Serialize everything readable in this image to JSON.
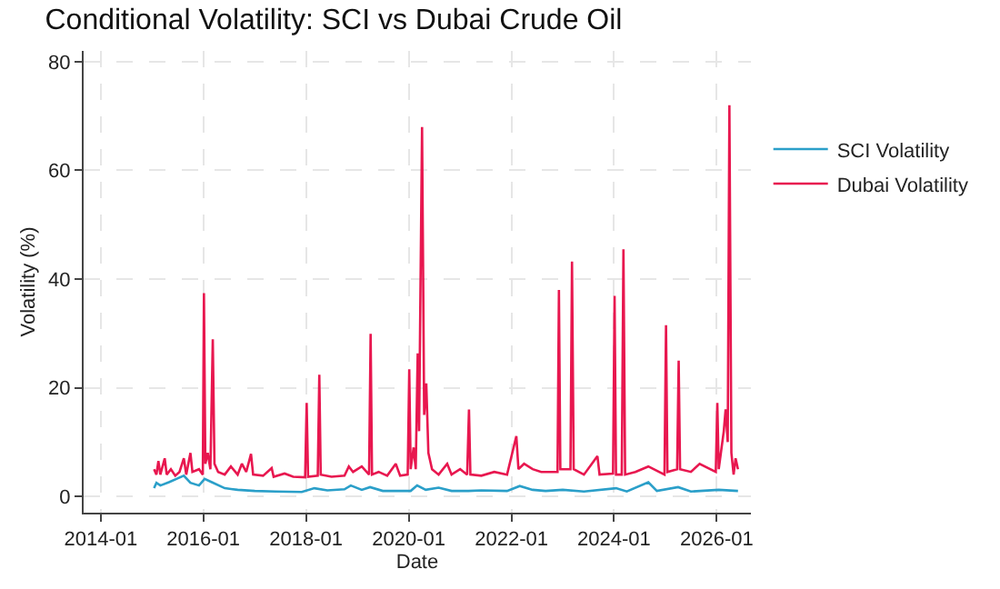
{
  "chart_data": {
    "type": "line",
    "title": "Conditional Volatility: SCI vs Dubai Crude Oil",
    "xlabel": "Date",
    "ylabel": "Volatility (%)",
    "xlim": [
      "2013-09",
      "2026-09"
    ],
    "xticks": [
      "2014-01",
      "2016-01",
      "2018-01",
      "2020-01",
      "2022-01",
      "2024-01",
      "2026-01"
    ],
    "ylim": [
      -3,
      82
    ],
    "yticks": [
      0,
      20,
      40,
      60,
      80
    ],
    "grid": true,
    "legend": "right",
    "marker": "none",
    "line_style": "solid",
    "series": [
      {
        "name": "SCI Volatility",
        "color": "#2a9fc9",
        "x": [
          "2015-01-15",
          "2015-02-01",
          "2015-03-01",
          "2015-05-01",
          "2015-07-01",
          "2015-08-15",
          "2015-10-01",
          "2015-12-01",
          "2016-01-10",
          "2016-03-01",
          "2016-06-01",
          "2016-09-01",
          "2017-01-01",
          "2017-06-01",
          "2017-12-01",
          "2018-03-01",
          "2018-06-01",
          "2018-10-01",
          "2018-11-15",
          "2019-02-01",
          "2019-04-01",
          "2019-07-01",
          "2020-01-15",
          "2020-03-01",
          "2020-05-01",
          "2020-08-01",
          "2020-11-01",
          "2021-03-01",
          "2021-06-01",
          "2021-12-01",
          "2022-03-01",
          "2022-06-01",
          "2022-09-01",
          "2023-01-01",
          "2023-06-01",
          "2024-01-15",
          "2024-04-01",
          "2024-09-01",
          "2024-11-01",
          "2025-04-01",
          "2025-07-01",
          "2026-01-15",
          "2026-06-01"
        ],
        "values": [
          1.5,
          2.5,
          2.0,
          2.6,
          3.3,
          3.8,
          2.5,
          2.0,
          3.2,
          2.6,
          1.5,
          1.2,
          1.0,
          0.9,
          0.8,
          1.5,
          1.1,
          1.3,
          2.0,
          1.2,
          1.7,
          1.0,
          1.0,
          2.0,
          1.2,
          1.6,
          1.0,
          1.0,
          1.1,
          1.0,
          1.9,
          1.2,
          1.0,
          1.2,
          0.9,
          1.5,
          0.9,
          2.6,
          1.0,
          1.7,
          0.9,
          1.2,
          1.0
        ]
      },
      {
        "name": "Dubai Volatility",
        "color": "#e8174f",
        "x": [
          "2015-01-15",
          "2015-02-01",
          "2015-02-15",
          "2015-03-01",
          "2015-04-01",
          "2015-04-15",
          "2015-05-15",
          "2015-06-15",
          "2015-07-15",
          "2015-08-15",
          "2015-09-01",
          "2015-10-01",
          "2015-10-15",
          "2015-12-01",
          "2015-12-28",
          "2016-01-05",
          "2016-01-15",
          "2016-02-01",
          "2016-02-20",
          "2016-03-08",
          "2016-03-20",
          "2016-04-15",
          "2016-06-01",
          "2016-07-15",
          "2016-09-01",
          "2016-10-01",
          "2016-11-01",
          "2016-12-05",
          "2016-12-20",
          "2017-03-01",
          "2017-05-01",
          "2017-05-15",
          "2017-08-01",
          "2017-10-01",
          "2017-12-25",
          "2018-01-05",
          "2018-01-15",
          "2018-03-25",
          "2018-04-05",
          "2018-04-15",
          "2018-07-01",
          "2018-10-01",
          "2018-11-01",
          "2018-12-01",
          "2019-02-01",
          "2019-03-25",
          "2019-04-05",
          "2019-04-15",
          "2019-06-01",
          "2019-08-01",
          "2019-10-01",
          "2019-11-01",
          "2019-12-25",
          "2020-01-05",
          "2020-01-15",
          "2020-02-05",
          "2020-02-20",
          "2020-03-05",
          "2020-03-15",
          "2020-04-05",
          "2020-04-20",
          "2020-05-05",
          "2020-05-20",
          "2020-06-15",
          "2020-08-01",
          "2020-10-01",
          "2020-11-01",
          "2021-01-01",
          "2021-02-20",
          "2021-03-05",
          "2021-03-15",
          "2021-06-01",
          "2021-09-01",
          "2021-12-01",
          "2022-02-05",
          "2022-02-20",
          "2022-04-01",
          "2022-06-01",
          "2022-08-01",
          "2022-11-25",
          "2022-12-05",
          "2022-12-15",
          "2023-02-25",
          "2023-03-08",
          "2023-03-20",
          "2023-06-01",
          "2023-09-05",
          "2023-09-20",
          "2023-12-25",
          "2024-01-05",
          "2024-01-15",
          "2024-02-25",
          "2024-03-08",
          "2024-03-20",
          "2024-06-01",
          "2024-09-01",
          "2024-12-25",
          "2025-01-05",
          "2025-01-15",
          "2025-03-25",
          "2025-04-05",
          "2025-04-15",
          "2025-07-01",
          "2025-09-01",
          "2025-12-25",
          "2026-01-05",
          "2026-01-15",
          "2026-02-20",
          "2026-03-05",
          "2026-03-20",
          "2026-04-01",
          "2026-04-15",
          "2026-05-01",
          "2026-05-15",
          "2026-06-01"
        ],
        "values": [
          5,
          4,
          6.5,
          4,
          7,
          4,
          5,
          3.8,
          4.5,
          7,
          4,
          8,
          4.5,
          5,
          4,
          37.4,
          6,
          8,
          5,
          28.9,
          6,
          4.5,
          4,
          5.5,
          4,
          6,
          4.5,
          7.8,
          4,
          3.8,
          5.2,
          3.6,
          4.2,
          3.6,
          3.5,
          17.2,
          3.6,
          3.8,
          22.4,
          4,
          3.6,
          3.8,
          5.5,
          4.5,
          5.5,
          4,
          29.9,
          4,
          4.5,
          3.8,
          6,
          3.8,
          4,
          23.4,
          5,
          9,
          5,
          26.3,
          12,
          68,
          15,
          20.8,
          8,
          5,
          4,
          6,
          4,
          5,
          4,
          16,
          4,
          3.8,
          4.5,
          4,
          11.1,
          5,
          6,
          5,
          4.5,
          4.5,
          38,
          5,
          5,
          43.2,
          5,
          4,
          7.4,
          4,
          4.2,
          36.9,
          4,
          4,
          45.5,
          4,
          4.5,
          5.5,
          4,
          31.5,
          4.5,
          5,
          25,
          5,
          4.5,
          6,
          4.5,
          17.2,
          5,
          12,
          16,
          10,
          72,
          8,
          4,
          7,
          5
        ]
      }
    ]
  }
}
